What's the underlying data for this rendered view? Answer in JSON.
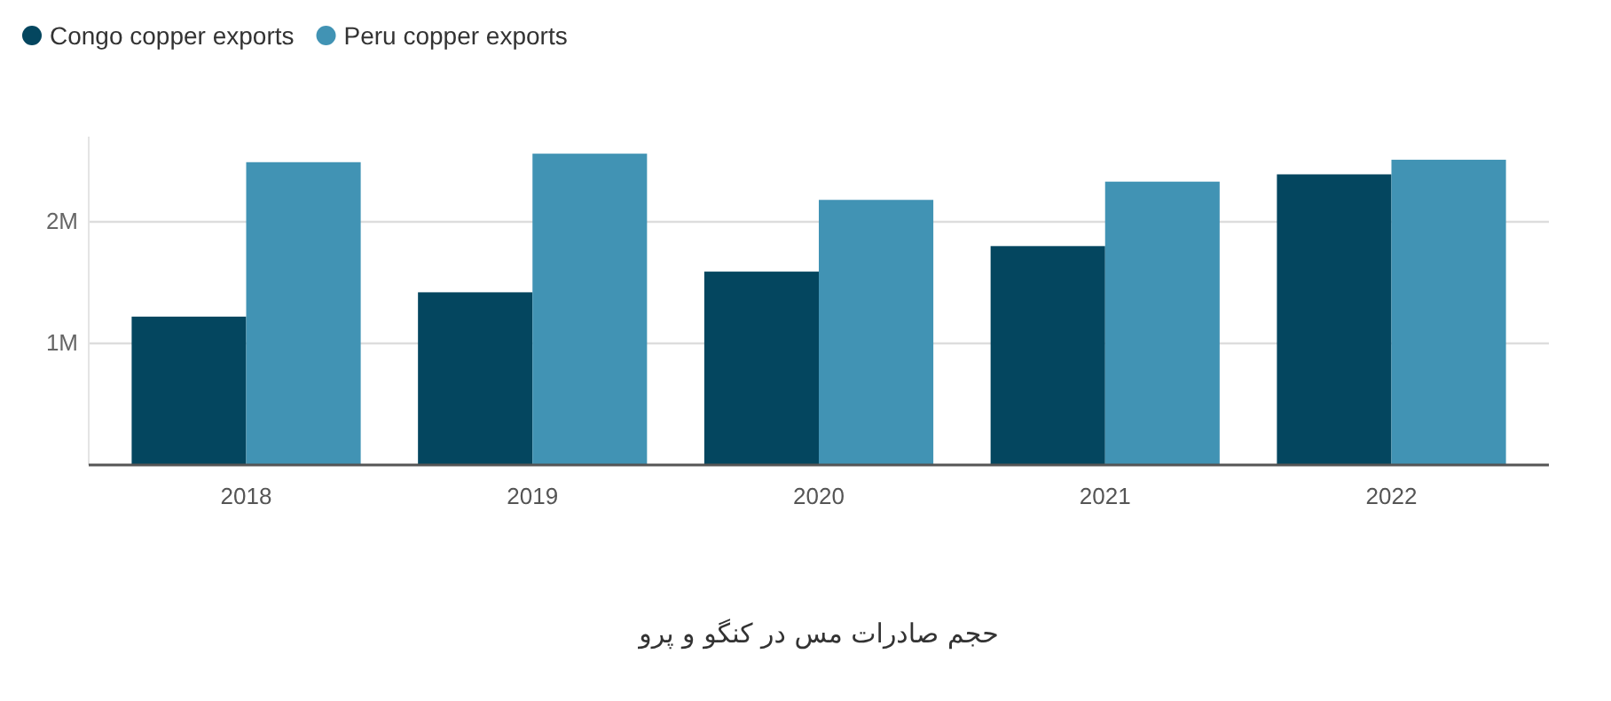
{
  "chart_data": {
    "type": "bar",
    "title": "حجم صادرات مس در کنگو و پرو",
    "categories": [
      "2018",
      "2019",
      "2020",
      "2021",
      "2022"
    ],
    "series": [
      {
        "name": "Congo copper exports",
        "color": "#04465f",
        "values": [
          1220000,
          1420000,
          1590000,
          1800000,
          2390000
        ]
      },
      {
        "name": "Peru copper exports",
        "color": "#4193b4",
        "values": [
          2490000,
          2560000,
          2180000,
          2330000,
          2510000
        ]
      }
    ],
    "ylim": [
      0,
      2700000
    ],
    "yticks": [
      {
        "value": 1000000,
        "label": "1M"
      },
      {
        "value": 2000000,
        "label": "2M"
      }
    ],
    "grid": "y",
    "legend": "top left"
  }
}
